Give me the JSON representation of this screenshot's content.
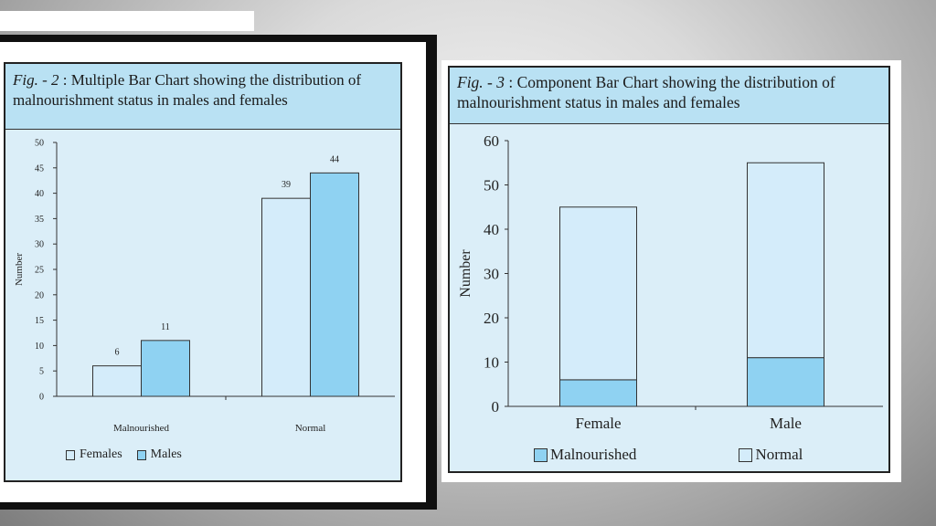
{
  "colors": {
    "light_bar": "#d4ecfa",
    "dark_bar": "#8fd2f2",
    "panel_bg": "#dbeef8",
    "title_bg": "#b9e1f3"
  },
  "fig2": {
    "title_fig": "Fig. - 2",
    "title_rest": " : Multiple Bar Chart showing the distribution of malnourishment status in males and females",
    "ylabel": "Number",
    "legend": [
      "Females",
      "Males"
    ]
  },
  "fig3": {
    "title_fig": "Fig. - 3",
    "title_rest": " : Component Bar Chart showing the distribution of malnourishment status in males and females",
    "ylabel": "Number",
    "legend": [
      "Malnourished",
      "Normal"
    ]
  },
  "chart_data": [
    {
      "type": "bar",
      "title": "Fig. - 2 : Multiple Bar Chart showing the distribution of malnourishment status in males and females",
      "categories": [
        "Malnourished",
        "Normal"
      ],
      "series": [
        {
          "name": "Females",
          "values": [
            6,
            39
          ]
        },
        {
          "name": "Males",
          "values": [
            11,
            44
          ]
        }
      ],
      "xlabel": "",
      "ylabel": "Number",
      "ylim": [
        0,
        50
      ],
      "yticks": [
        0,
        5,
        10,
        15,
        20,
        25,
        30,
        35,
        40,
        45,
        50
      ],
      "legend_position": "bottom",
      "grid": false,
      "data_labels": true
    },
    {
      "type": "bar",
      "stacked": true,
      "title": "Fig. - 3 : Component Bar Chart showing the distribution of malnourishment status in males and females",
      "categories": [
        "Female",
        "Male"
      ],
      "series": [
        {
          "name": "Malnourished",
          "values": [
            6,
            11
          ]
        },
        {
          "name": "Normal",
          "values": [
            39,
            44
          ]
        }
      ],
      "xlabel": "",
      "ylabel": "Number",
      "ylim": [
        0,
        60
      ],
      "yticks": [
        0,
        10,
        20,
        30,
        40,
        50,
        60
      ],
      "legend_position": "bottom",
      "grid": false,
      "data_labels": false
    }
  ]
}
